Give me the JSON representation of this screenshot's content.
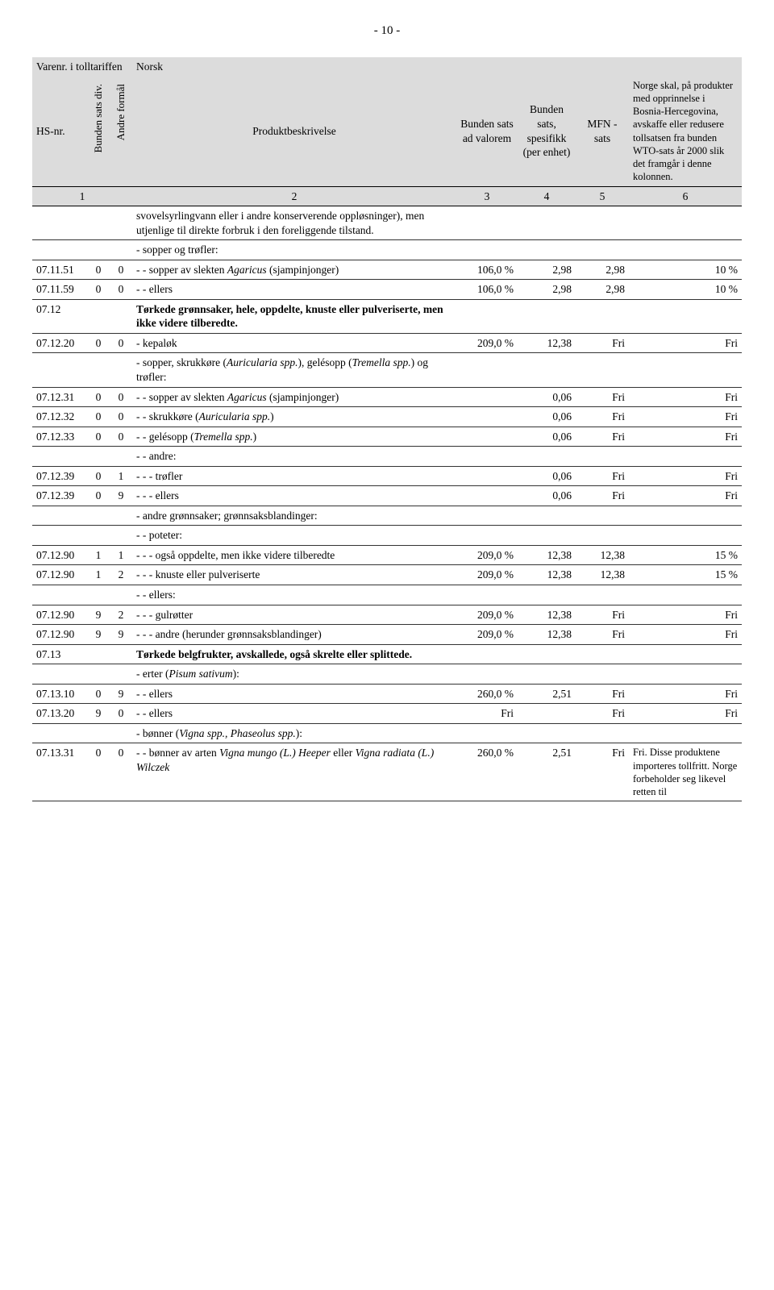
{
  "page_number": "- 10 -",
  "header": {
    "col1_top": "Varenr. i tolltariffen",
    "col_desc_top": "Norsk",
    "hs": "HS-nr.",
    "bunden_div": "Bunden sats div.",
    "andre_formal": "Andre formål",
    "produktbeskrivelse": "Produktbeskrivelse",
    "bunden_ad_valorem": "Bunden sats ad valorem",
    "bunden_spesifikk": "Bunden sats, spesifikk (per enhet)",
    "mfn": "MFN - sats",
    "norge_skal": "Norge skal, på produkter med opprinnelse i Bosnia-Hercegovina, avskaffe eller redusere tollsatsen fra bunden WTO-sats år 2000 slik det framgår i denne kolonnen."
  },
  "numrow": {
    "c3": "1",
    "c4": "2",
    "c5": "3",
    "c6": "4",
    "c7": "5",
    "c8": "6"
  },
  "rows": [
    {
      "hs": "",
      "b": "",
      "a": "",
      "desc": "svovelsyrlingvann eller i andre konserverende oppløsninger), men utjenlige til direkte forbruk i den foreliggende tilstand.",
      "v1": "",
      "v2": "",
      "v3": "",
      "v4": ""
    },
    {
      "hs": "",
      "b": "",
      "a": "",
      "desc": "- sopper og trøfler:",
      "v1": "",
      "v2": "",
      "v3": "",
      "v4": ""
    },
    {
      "hs": "07.11.51",
      "b": "0",
      "a": "0",
      "desc": "- - sopper av slekten <span class=\"it\">Agaricus</span> (sjampinjonger)",
      "v1": "106,0 %",
      "v2": "2,98",
      "v3": "2,98",
      "v4": "10 %"
    },
    {
      "hs": "07.11.59",
      "b": "0",
      "a": "0",
      "desc": "- - ellers",
      "v1": "106,0 %",
      "v2": "2,98",
      "v3": "2,98",
      "v4": "10 %"
    },
    {
      "hs": "07.12",
      "b": "",
      "a": "",
      "desc": "<b>Tørkede grønnsaker, hele, oppdelte, knuste eller pulveriserte, men ikke videre tilberedte.</b>",
      "v1": "",
      "v2": "",
      "v3": "",
      "v4": ""
    },
    {
      "hs": "07.12.20",
      "b": "0",
      "a": "0",
      "desc": "- kepaløk",
      "v1": "209,0 %",
      "v2": "12,38",
      "v3": "Fri",
      "v4": "Fri"
    },
    {
      "hs": "",
      "b": "",
      "a": "",
      "desc": "- sopper, skrukkøre (<span class=\"it\">Auricularia spp.</span>), gelésopp (<span class=\"it\">Tremella spp.</span>) og trøfler:",
      "v1": "",
      "v2": "",
      "v3": "",
      "v4": ""
    },
    {
      "hs": "07.12.31",
      "b": "0",
      "a": "0",
      "desc": "- - sopper av slekten <span class=\"it\">Agaricus</span> (sjampinjonger)",
      "v1": "",
      "v2": "0,06",
      "v3": "Fri",
      "v4": "Fri"
    },
    {
      "hs": "07.12.32",
      "b": "0",
      "a": "0",
      "desc": "- - skrukkøre (<span class=\"it\">Auricularia spp.</span>)",
      "v1": "",
      "v2": "0,06",
      "v3": "Fri",
      "v4": "Fri"
    },
    {
      "hs": "07.12.33",
      "b": "0",
      "a": "0",
      "desc": "- - gelésopp (<span class=\"it\">Tremella spp.</span>)",
      "v1": "",
      "v2": "0,06",
      "v3": "Fri",
      "v4": "Fri"
    },
    {
      "hs": "",
      "b": "",
      "a": "",
      "desc": "- - andre:",
      "v1": "",
      "v2": "",
      "v3": "",
      "v4": ""
    },
    {
      "hs": "07.12.39",
      "b": "0",
      "a": "1",
      "desc": "- - - trøfler",
      "v1": "",
      "v2": "0,06",
      "v3": "Fri",
      "v4": "Fri"
    },
    {
      "hs": "07.12.39",
      "b": "0",
      "a": "9",
      "desc": "- - - ellers",
      "v1": "",
      "v2": "0,06",
      "v3": "Fri",
      "v4": "Fri"
    },
    {
      "hs": "",
      "b": "",
      "a": "",
      "desc": "- andre grønnsaker; grønnsaksblandinger:",
      "v1": "",
      "v2": "",
      "v3": "",
      "v4": ""
    },
    {
      "hs": "",
      "b": "",
      "a": "",
      "desc": "- - poteter:",
      "v1": "",
      "v2": "",
      "v3": "",
      "v4": ""
    },
    {
      "hs": "07.12.90",
      "b": "1",
      "a": "1",
      "desc": "- - - også oppdelte, men ikke videre tilberedte",
      "v1": "209,0 %",
      "v2": "12,38",
      "v3": "12,38",
      "v4": "15 %"
    },
    {
      "hs": "07.12.90",
      "b": "1",
      "a": "2",
      "desc": "- - - knuste eller pulveriserte",
      "v1": "209,0 %",
      "v2": "12,38",
      "v3": "12,38",
      "v4": "15 %"
    },
    {
      "hs": "",
      "b": "",
      "a": "",
      "desc": "- - ellers:",
      "v1": "",
      "v2": "",
      "v3": "",
      "v4": ""
    },
    {
      "hs": "07.12.90",
      "b": "9",
      "a": "2",
      "desc": "- - - gulrøtter",
      "v1": "209,0 %",
      "v2": "12,38",
      "v3": "Fri",
      "v4": "Fri"
    },
    {
      "hs": "07.12.90",
      "b": "9",
      "a": "9",
      "desc": "- - - andre (herunder grønnsaksblandinger)",
      "v1": "209,0 %",
      "v2": "12,38",
      "v3": "Fri",
      "v4": "Fri"
    },
    {
      "hs": "07.13",
      "b": "",
      "a": "",
      "desc": "<b>Tørkede belgfrukter, avskallede, også skrelte eller splittede.</b>",
      "v1": "",
      "v2": "",
      "v3": "",
      "v4": ""
    },
    {
      "hs": "",
      "b": "",
      "a": "",
      "desc": "- erter (<span class=\"it\">Pisum sativum</span>):",
      "v1": "",
      "v2": "",
      "v3": "",
      "v4": ""
    },
    {
      "hs": "07.13.10",
      "b": "0",
      "a": "9",
      "desc": "- - ellers",
      "v1": "260,0 %",
      "v2": "2,51",
      "v3": "Fri",
      "v4": "Fri"
    },
    {
      "hs": "07.13.20",
      "b": "9",
      "a": "0",
      "desc": "- - ellers",
      "v1": "Fri",
      "v2": "",
      "v3": "Fri",
      "v4": "Fri"
    },
    {
      "hs": "",
      "b": "",
      "a": "",
      "desc": "- bønner (<span class=\"it\">Vigna spp., Phaseolus spp.</span>):",
      "v1": "",
      "v2": "",
      "v3": "",
      "v4": ""
    },
    {
      "hs": "07.13.31",
      "b": "0",
      "a": "0",
      "desc": "- - bønner av arten <span class=\"it\">Vigna mungo (L.) Heeper</span> eller <span class=\"it\">Vigna radiata (L.) Wilczek</span>",
      "v1": "260,0 %",
      "v2": "2,51",
      "v3": "Fri",
      "v4": "Fri. Disse produktene importeres tollfritt. Norge forbeholder seg likevel retten til"
    }
  ]
}
